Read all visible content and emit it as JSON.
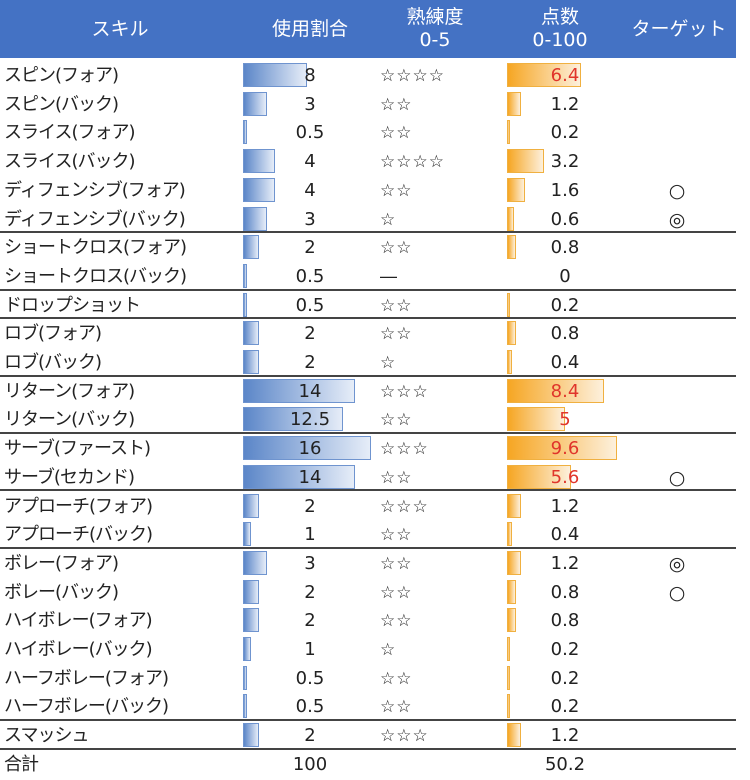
{
  "header": {
    "skill": "スキル",
    "usage": "使用割合",
    "proficiency_line1": "熟練度",
    "proficiency_line2": "0-5",
    "score_line1": "点数",
    "score_line2": "0-100",
    "target": "ターゲット"
  },
  "colors": {
    "header_bg": "#4472C4",
    "usage_bar": "#5b86c8",
    "score_bar": "#f6a623",
    "high_score_text": "#e0352b"
  },
  "rows": [
    {
      "skill": "スピン(フォア)",
      "usage": "8",
      "stars": "☆☆☆☆",
      "score": "6.4",
      "target": "",
      "sep": false
    },
    {
      "skill": "スピン(バック)",
      "usage": "3",
      "stars": "☆☆",
      "score": "1.2",
      "target": "",
      "sep": false
    },
    {
      "skill": "スライス(フォア)",
      "usage": "0.5",
      "stars": "☆☆",
      "score": "0.2",
      "target": "",
      "sep": false
    },
    {
      "skill": "スライス(バック)",
      "usage": "4",
      "stars": "☆☆☆☆",
      "score": "3.2",
      "target": "",
      "sep": false
    },
    {
      "skill": "ディフェンシブ(フォア)",
      "usage": "4",
      "stars": "☆☆",
      "score": "1.6",
      "target": "○",
      "sep": false
    },
    {
      "skill": "ディフェンシブ(バック)",
      "usage": "3",
      "stars": "☆",
      "score": "0.6",
      "target": "◎",
      "sep": true
    },
    {
      "skill": "ショートクロス(フォア)",
      "usage": "2",
      "stars": "☆☆",
      "score": "0.8",
      "target": "",
      "sep": false
    },
    {
      "skill": "ショートクロス(バック)",
      "usage": "0.5",
      "stars": "―",
      "score": "0",
      "target": "",
      "sep": true
    },
    {
      "skill": "ドロップショット",
      "usage": "0.5",
      "stars": "☆☆",
      "score": "0.2",
      "target": "",
      "sep": true
    },
    {
      "skill": "ロブ(フォア)",
      "usage": "2",
      "stars": "☆☆",
      "score": "0.8",
      "target": "",
      "sep": false
    },
    {
      "skill": "ロブ(バック)",
      "usage": "2",
      "stars": "☆",
      "score": "0.4",
      "target": "",
      "sep": true
    },
    {
      "skill": "リターン(フォア)",
      "usage": "14",
      "stars": "☆☆☆",
      "score": "8.4",
      "target": "",
      "sep": false
    },
    {
      "skill": "リターン(バック)",
      "usage": "12.5",
      "stars": "☆☆",
      "score": "5",
      "target": "",
      "sep": true
    },
    {
      "skill": "サーブ(ファースト)",
      "usage": "16",
      "stars": "☆☆☆",
      "score": "9.6",
      "target": "",
      "sep": false
    },
    {
      "skill": "サーブ(セカンド)",
      "usage": "14",
      "stars": "☆☆",
      "score": "5.6",
      "target": "○",
      "sep": true
    },
    {
      "skill": "アプローチ(フォア)",
      "usage": "2",
      "stars": "☆☆☆",
      "score": "1.2",
      "target": "",
      "sep": false
    },
    {
      "skill": "アプローチ(バック)",
      "usage": "1",
      "stars": "☆☆",
      "score": "0.4",
      "target": "",
      "sep": true
    },
    {
      "skill": "ボレー(フォア)",
      "usage": "3",
      "stars": "☆☆",
      "score": "1.2",
      "target": "◎",
      "sep": false
    },
    {
      "skill": "ボレー(バック)",
      "usage": "2",
      "stars": "☆☆",
      "score": "0.8",
      "target": "○",
      "sep": false
    },
    {
      "skill": "ハイボレー(フォア)",
      "usage": "2",
      "stars": "☆☆",
      "score": "0.8",
      "target": "",
      "sep": false
    },
    {
      "skill": "ハイボレー(バック)",
      "usage": "1",
      "stars": "☆",
      "score": "0.2",
      "target": "",
      "sep": false
    },
    {
      "skill": "ハーフボレー(フォア)",
      "usage": "0.5",
      "stars": "☆☆",
      "score": "0.2",
      "target": "",
      "sep": false
    },
    {
      "skill": "ハーフボレー(バック)",
      "usage": "0.5",
      "stars": "☆☆",
      "score": "0.2",
      "target": "",
      "sep": true
    },
    {
      "skill": "スマッシュ",
      "usage": "2",
      "stars": "☆☆☆",
      "score": "1.2",
      "target": "",
      "sep": true
    }
  ],
  "total": {
    "label": "合計",
    "usage": "100",
    "score": "50.2"
  }
}
